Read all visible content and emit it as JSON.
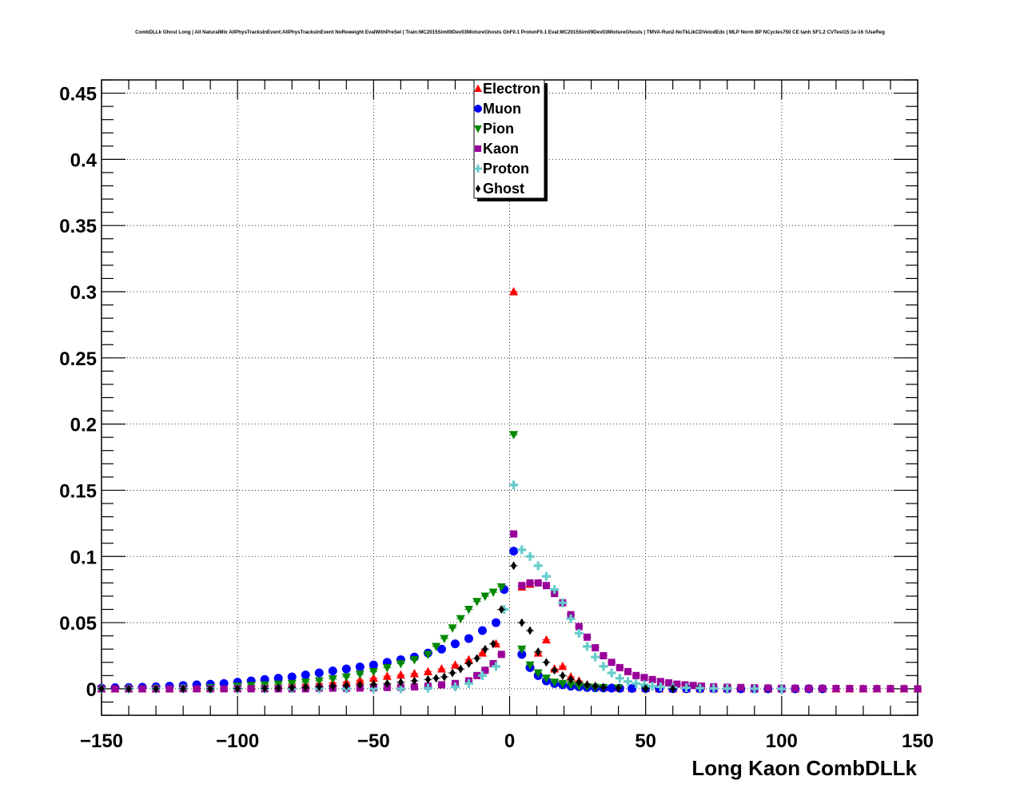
{
  "chart_data": {
    "type": "scatter",
    "title": "CombDLLk Ghost Long | All NaturalMix AllPhysTracksInEvent:AllPhysTracksInEvent NoReweight EvalWithPreSel | Train:MC2015Sim09Dev03MixtureGhosts GhF0.1 ProtonF0.1 Eval:MC2015Sim09Dev03MixtureGhosts | TMVA-Run2-NoTkLikCDVelodEdx | MLP Norm BP NCycles750 CE tanh SF1.2 CVTest15:1e-16 !UseReg",
    "xlabel": "Long Kaon CombDLLk",
    "ylabel": "",
    "xlim": [
      -150,
      150
    ],
    "ylim": [
      -0.02,
      0.46
    ],
    "xticks": [
      -150,
      -100,
      -50,
      0,
      50,
      100,
      150
    ],
    "xtick_labels": [
      "−150",
      "−100",
      "−50",
      "0",
      "50",
      "100",
      "150"
    ],
    "yticks": [
      0,
      0.05,
      0.1,
      0.15,
      0.2,
      0.25,
      0.3,
      0.35,
      0.4,
      0.45
    ],
    "ytick_labels": [
      "0",
      "0.05",
      "0.1",
      "0.15",
      "0.2",
      "0.25",
      "0.3",
      "0.35",
      "0.4",
      "0.45"
    ],
    "grid": true,
    "legend_position": "top-center",
    "series": [
      {
        "name": "Electron",
        "color": "#ff0000",
        "marker": "triangle-up",
        "x": [
          -150,
          -145,
          -140,
          -135,
          -130,
          -125,
          -120,
          -115,
          -110,
          -105,
          -100,
          -95,
          -90,
          -85,
          -80,
          -75,
          -70,
          -65,
          -60,
          -55,
          -50,
          -45,
          -40,
          -35,
          -30,
          -25,
          -20,
          -15,
          -10,
          -5,
          1.5,
          4.5,
          7.5,
          10.5,
          13.5,
          16.5,
          19.5,
          22.5,
          25.5,
          28.5,
          31.5,
          34.5,
          37.5,
          40.5,
          45,
          50,
          55,
          60,
          65,
          70,
          75,
          80,
          85,
          90,
          95,
          100,
          105,
          110,
          115,
          120,
          125,
          130,
          135,
          140,
          145,
          150
        ],
        "y": [
          0.0,
          0.0,
          0.0,
          0.0,
          0.0,
          0.0,
          0.0005,
          0.0006,
          0.0008,
          0.001,
          0.0012,
          0.0015,
          0.002,
          0.0025,
          0.003,
          0.0035,
          0.004,
          0.0045,
          0.005,
          0.0065,
          0.008,
          0.0095,
          0.0105,
          0.0115,
          0.013,
          0.015,
          0.018,
          0.022,
          0.027,
          0.034,
          0.3,
          0.077,
          0.079,
          0.027,
          0.037,
          0.015,
          0.017,
          0.009,
          0.006,
          0.003,
          0.002,
          0.001,
          0.0008,
          0.0005,
          0.0003,
          0.0002,
          0.0001,
          0.0,
          0.0,
          0.0,
          0.0,
          0.0,
          0.0,
          0.0,
          0.0,
          0.0,
          0.0,
          0.0,
          0.0,
          0.0,
          0.0,
          0.0,
          0.0,
          0.0,
          0.0,
          0.0
        ]
      },
      {
        "name": "Muon",
        "color": "#0000ff",
        "marker": "circle",
        "x": [
          -150,
          -145,
          -140,
          -135,
          -130,
          -125,
          -120,
          -115,
          -110,
          -105,
          -100,
          -95,
          -90,
          -85,
          -80,
          -75,
          -70,
          -65,
          -60,
          -55,
          -50,
          -45,
          -40,
          -35,
          -30,
          -25,
          -20,
          -15,
          -10,
          -5,
          -2,
          1.5,
          4.5,
          7.5,
          10.5,
          13.5,
          16.5,
          19.5,
          22.5,
          25.5,
          28.5,
          31.5,
          34.5,
          37.5,
          40.5,
          45,
          50,
          55,
          60,
          65,
          70,
          75,
          80,
          85,
          90,
          95,
          100,
          105,
          110,
          115
        ],
        "y": [
          0.0005,
          0.0008,
          0.001,
          0.0012,
          0.0015,
          0.002,
          0.0025,
          0.003,
          0.0035,
          0.004,
          0.005,
          0.006,
          0.007,
          0.008,
          0.009,
          0.0105,
          0.012,
          0.0135,
          0.015,
          0.0165,
          0.018,
          0.02,
          0.022,
          0.024,
          0.027,
          0.03,
          0.034,
          0.038,
          0.044,
          0.05,
          0.075,
          0.104,
          0.026,
          0.016,
          0.01,
          0.006,
          0.004,
          0.003,
          0.002,
          0.0015,
          0.001,
          0.0008,
          0.0006,
          0.0005,
          0.0004,
          0.0003,
          0.0002,
          0.0002,
          0.0001,
          0.0001,
          0.0001,
          0.0001,
          0.0,
          0.0,
          0.0,
          0.0,
          0.0,
          0.0,
          0.0,
          0.0
        ]
      },
      {
        "name": "Pion",
        "color": "#008800",
        "marker": "triangle-down",
        "x": [
          -150,
          -140,
          -130,
          -120,
          -110,
          -100,
          -95,
          -90,
          -85,
          -80,
          -75,
          -70,
          -65,
          -60,
          -55,
          -50,
          -45,
          -40,
          -35,
          -30,
          -27,
          -24,
          -21,
          -18,
          -15,
          -12,
          -9,
          -6,
          -3,
          1.5,
          4.5,
          7.5,
          10.5,
          13.5,
          16.5,
          19.5,
          22.5,
          25.5,
          28.5,
          31.5,
          34.5,
          40,
          50,
          60,
          70,
          80
        ],
        "y": [
          0.0,
          0.0,
          0.0002,
          0.0005,
          0.001,
          0.002,
          0.0025,
          0.003,
          0.0035,
          0.004,
          0.005,
          0.006,
          0.0075,
          0.009,
          0.011,
          0.013,
          0.016,
          0.019,
          0.022,
          0.026,
          0.032,
          0.038,
          0.046,
          0.053,
          0.06,
          0.066,
          0.07,
          0.073,
          0.077,
          0.192,
          0.03,
          0.018,
          0.012,
          0.008,
          0.005,
          0.004,
          0.003,
          0.002,
          0.0015,
          0.001,
          0.0008,
          0.0005,
          0.0003,
          0.0002,
          0.0001,
          0.0
        ]
      },
      {
        "name": "Kaon",
        "color": "#990099",
        "marker": "square",
        "x": [
          -150,
          -145,
          -140,
          -135,
          -130,
          -125,
          -120,
          -115,
          -110,
          -105,
          -100,
          -95,
          -90,
          -85,
          -80,
          -75,
          -70,
          -65,
          -60,
          -55,
          -50,
          -45,
          -40,
          -35,
          -30,
          -25,
          -20,
          -15,
          -12,
          -9,
          -6,
          -3,
          1.5,
          4.5,
          7.5,
          10.5,
          13.5,
          16.5,
          19.5,
          22.5,
          25.5,
          28.5,
          31.5,
          34.5,
          37.5,
          40.5,
          43.5,
          46.5,
          49.5,
          52.5,
          55.5,
          58.5,
          61.5,
          64.5,
          67.5,
          70.5,
          75,
          80,
          85,
          90,
          95,
          100,
          105,
          110,
          115,
          120,
          125,
          130,
          135,
          140,
          145,
          150
        ],
        "y": [
          0.0,
          0.0,
          0.0,
          0.0,
          0.0,
          0.0,
          0.0,
          0.0,
          0.0,
          0.0,
          0.0,
          0.0,
          0.0,
          0.0,
          0.0,
          0.0,
          0.0005,
          0.0005,
          0.0005,
          0.0006,
          0.0008,
          0.001,
          0.0012,
          0.0015,
          0.002,
          0.003,
          0.004,
          0.006,
          0.01,
          0.014,
          0.019,
          0.026,
          0.117,
          0.078,
          0.08,
          0.08,
          0.078,
          0.072,
          0.065,
          0.056,
          0.047,
          0.039,
          0.031,
          0.025,
          0.02,
          0.016,
          0.013,
          0.01,
          0.0085,
          0.007,
          0.0055,
          0.0045,
          0.0035,
          0.003,
          0.0025,
          0.002,
          0.0015,
          0.0012,
          0.001,
          0.0008,
          0.0006,
          0.0005,
          0.0004,
          0.0003,
          0.0003,
          0.0002,
          0.0002,
          0.0001,
          0.0001,
          0.0001,
          0.0001,
          0.0
        ]
      },
      {
        "name": "Proton",
        "color": "#66cccc",
        "marker": "cross",
        "x": [
          -150,
          -140,
          -130,
          -120,
          -110,
          -100,
          -90,
          -80,
          -70,
          -60,
          -50,
          -40,
          -30,
          -20,
          -15,
          -10,
          -5,
          -2,
          1.5,
          4.5,
          7.5,
          10.5,
          13.5,
          16.5,
          19.5,
          22.5,
          25.5,
          28.5,
          31.5,
          34.5,
          37.5,
          40.5,
          43.5,
          46.5,
          49.5,
          52.5,
          55.5,
          60,
          65,
          70,
          75,
          80,
          90,
          100
        ],
        "y": [
          0.0,
          0.0,
          0.0,
          0.0,
          0.0,
          0.0,
          0.0,
          0.0,
          0.0,
          0.0,
          0.0,
          0.0,
          0.0005,
          0.0015,
          0.004,
          0.01,
          0.017,
          0.06,
          0.154,
          0.105,
          0.1,
          0.093,
          0.085,
          0.075,
          0.065,
          0.053,
          0.042,
          0.032,
          0.024,
          0.017,
          0.012,
          0.008,
          0.0055,
          0.004,
          0.003,
          0.002,
          0.0015,
          0.001,
          0.0008,
          0.0005,
          0.0003,
          0.0002,
          0.0001,
          0.0
        ]
      },
      {
        "name": "Ghost",
        "color": "#000000",
        "marker": "diamond",
        "x": [
          -150,
          -140,
          -130,
          -120,
          -110,
          -100,
          -90,
          -85,
          -80,
          -75,
          -70,
          -65,
          -60,
          -55,
          -50,
          -45,
          -40,
          -35,
          -30,
          -27,
          -24,
          -21,
          -18,
          -15,
          -12,
          -9,
          -6,
          -3,
          1.5,
          4.5,
          7.5,
          10.5,
          13.5,
          16.5,
          19.5,
          22.5,
          25.5,
          28.5,
          31.5,
          34.5,
          40,
          50,
          60
        ],
        "y": [
          0.0,
          0.0,
          0.0,
          0.0,
          0.0,
          0.0002,
          0.0003,
          0.0005,
          0.0008,
          0.001,
          0.0015,
          0.002,
          0.0025,
          0.003,
          0.0035,
          0.004,
          0.005,
          0.006,
          0.007,
          0.008,
          0.009,
          0.012,
          0.015,
          0.019,
          0.023,
          0.03,
          0.034,
          0.06,
          0.093,
          0.05,
          0.044,
          0.028,
          0.02,
          0.014,
          0.01,
          0.007,
          0.005,
          0.003,
          0.002,
          0.001,
          0.0005,
          0.0002,
          0.0
        ]
      }
    ]
  }
}
